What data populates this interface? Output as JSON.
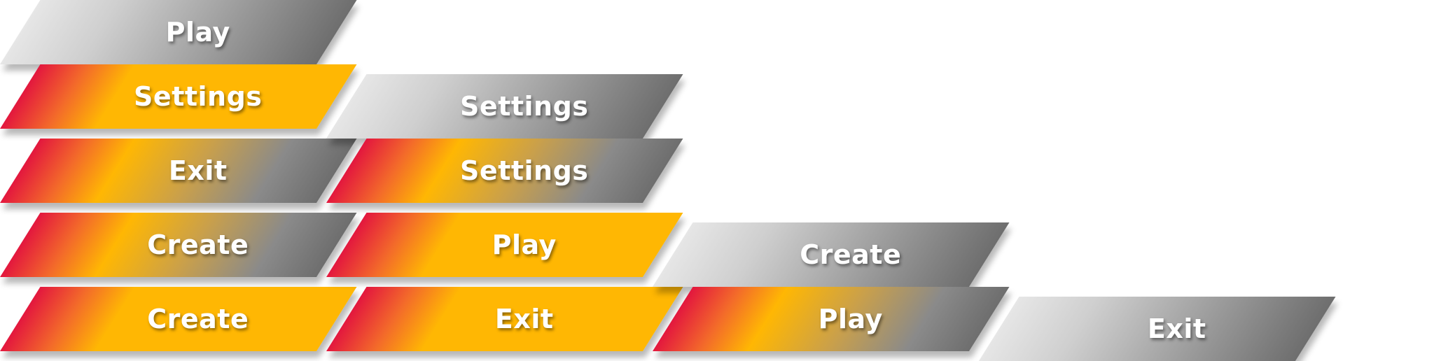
{
  "columns": [
    {
      "buttons": [
        {
          "label": "Play",
          "state": "gray"
        },
        {
          "label": "Settings",
          "state": "active"
        },
        {
          "label": "Exit",
          "state": "hover"
        },
        {
          "label": "Create",
          "state": "hover"
        },
        {
          "label": "Create",
          "state": "active"
        }
      ]
    },
    {
      "buttons": [
        {
          "label": "Settings",
          "state": "gray"
        },
        {
          "label": "Settings",
          "state": "hover"
        },
        {
          "label": "Play",
          "state": "active"
        },
        {
          "label": "Exit",
          "state": "active"
        }
      ]
    },
    {
      "buttons": [
        {
          "label": "Create",
          "state": "gray"
        },
        {
          "label": "Play",
          "state": "hover"
        }
      ]
    },
    {
      "buttons": [
        {
          "label": "Exit",
          "state": "gray"
        }
      ]
    }
  ],
  "colors": {
    "gray_start": "#e6e6e6",
    "gray_end": "#6e6e6e",
    "red": "#e3173e",
    "orange": "#f36a2a",
    "amber": "#ffb703"
  }
}
